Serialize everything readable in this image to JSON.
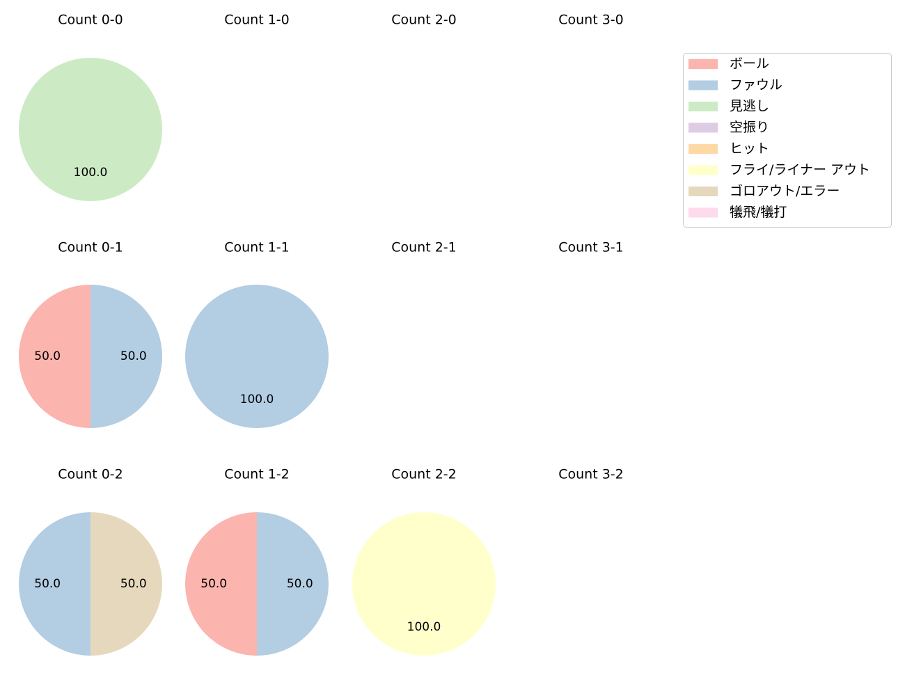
{
  "chart_data": {
    "type": "pie",
    "legend": {
      "placement": "top-right",
      "entries": [
        {
          "label": "ボール",
          "color": "#fbb4ae"
        },
        {
          "label": "ファウル",
          "color": "#b3cde3"
        },
        {
          "label": "見逃し",
          "color": "#ccebc5"
        },
        {
          "label": "空振り",
          "color": "#decbe4"
        },
        {
          "label": "ヒット",
          "color": "#fed9a6"
        },
        {
          "label": "フライ/ライナー アウト",
          "color": "#ffffcc"
        },
        {
          "label": "ゴロアウト/エラー",
          "color": "#e5d8bd"
        },
        {
          "label": "犠飛/犠打",
          "color": "#fddaec"
        }
      ]
    },
    "panels": [
      {
        "title": "Count 0-0",
        "slices": [
          {
            "category": "見逃し",
            "value": 100.0,
            "label": "100.0"
          }
        ]
      },
      {
        "title": "Count 1-0",
        "slices": []
      },
      {
        "title": "Count 2-0",
        "slices": []
      },
      {
        "title": "Count 3-0",
        "slices": []
      },
      {
        "title": "Count 0-1",
        "slices": [
          {
            "category": "ボール",
            "value": 50.0,
            "label": "50.0"
          },
          {
            "category": "ファウル",
            "value": 50.0,
            "label": "50.0"
          }
        ]
      },
      {
        "title": "Count 1-1",
        "slices": [
          {
            "category": "ファウル",
            "value": 100.0,
            "label": "100.0"
          }
        ]
      },
      {
        "title": "Count 2-1",
        "slices": []
      },
      {
        "title": "Count 3-1",
        "slices": []
      },
      {
        "title": "Count 0-2",
        "slices": [
          {
            "category": "ファウル",
            "value": 50.0,
            "label": "50.0"
          },
          {
            "category": "ゴロアウト/エラー",
            "value": 50.0,
            "label": "50.0"
          }
        ]
      },
      {
        "title": "Count 1-2",
        "slices": [
          {
            "category": "ボール",
            "value": 50.0,
            "label": "50.0"
          },
          {
            "category": "ファウル",
            "value": 50.0,
            "label": "50.0"
          }
        ]
      },
      {
        "title": "Count 2-2",
        "slices": [
          {
            "category": "フライ/ライナー アウト",
            "value": 100.0,
            "label": "100.0"
          }
        ]
      },
      {
        "title": "Count 3-2",
        "slices": []
      }
    ]
  }
}
